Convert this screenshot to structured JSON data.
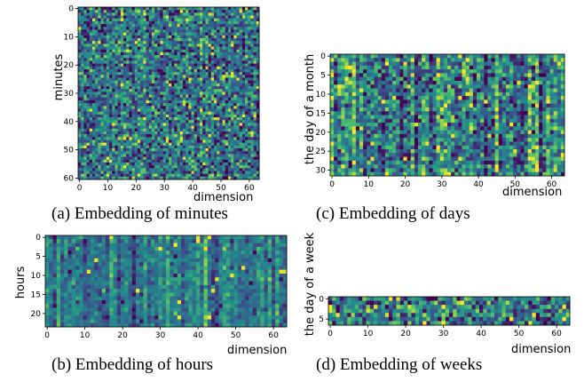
{
  "chart_data": [
    {
      "type": "heatmap",
      "caption": "(a) Embedding of minutes",
      "xlabel": "dimension",
      "ylabel": "minutes",
      "rows": 61,
      "cols": 64,
      "xlim": [
        0,
        63
      ],
      "ylim": [
        0,
        60
      ],
      "xticks": [
        0,
        10,
        20,
        30,
        40,
        50,
        60
      ],
      "yticks": [
        0,
        10,
        20,
        30,
        40,
        50,
        60
      ],
      "seed": 11,
      "mean": 0.4,
      "spread": 0.22,
      "column_bias": 0.05
    },
    {
      "type": "heatmap",
      "caption": "(c) Embedding of days",
      "xlabel": "dimension",
      "ylabel": "the day of a month",
      "rows": 32,
      "cols": 64,
      "xlim": [
        0,
        63
      ],
      "ylim": [
        0,
        31
      ],
      "xticks": [
        0,
        10,
        20,
        30,
        40,
        50,
        60
      ],
      "yticks": [
        0,
        5,
        10,
        15,
        20,
        25,
        30
      ],
      "seed": 23,
      "mean": 0.4,
      "spread": 0.2,
      "column_bias": 0.16
    },
    {
      "type": "heatmap",
      "caption": "(b) Embedding of hours",
      "xlabel": "dimension",
      "ylabel": "hours",
      "rows": 24,
      "cols": 64,
      "xlim": [
        0,
        63
      ],
      "ylim": [
        0,
        23
      ],
      "xticks": [
        0,
        10,
        20,
        30,
        40,
        50,
        60
      ],
      "yticks": [
        0,
        5,
        10,
        15,
        20
      ],
      "seed": 37,
      "mean": 0.42,
      "spread": 0.1,
      "column_bias": 0.1
    },
    {
      "type": "heatmap",
      "caption": "(d) Embedding of weeks",
      "xlabel": "dimension",
      "ylabel": "the day of a week",
      "rows": 7,
      "cols": 64,
      "xlim": [
        0,
        63
      ],
      "ylim": [
        0,
        6
      ],
      "xticks": [
        0,
        10,
        20,
        30,
        40,
        50,
        60
      ],
      "yticks": [
        0,
        5
      ],
      "seed": 53,
      "mean": 0.4,
      "spread": 0.24,
      "column_bias": 0.04
    }
  ],
  "colormap": [
    "#440154",
    "#3b528b",
    "#21918c",
    "#5ec962",
    "#fde725"
  ]
}
